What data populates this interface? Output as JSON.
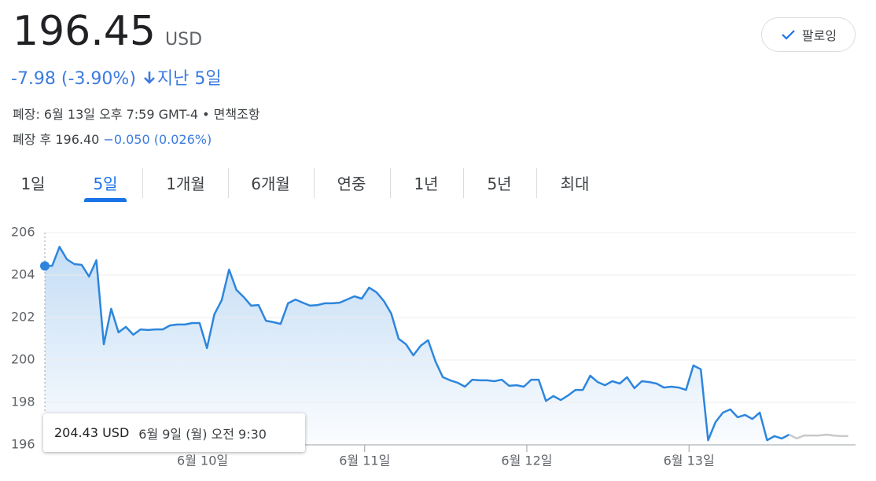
{
  "header": {
    "price": "196.45",
    "currency": "USD",
    "change": "-7.98 (-3.90%)",
    "period": "지난 5일",
    "status": "폐장: 6월 13일 오후 7:59 GMT-4 • 면책조항",
    "after_hours": "폐장 후 196.40",
    "after_hours_change": "−0.050 (0.026%)",
    "follow": "팔로잉"
  },
  "tabs": {
    "items": [
      "1일",
      "5일",
      "1개월",
      "6개월",
      "연중",
      "1년",
      "5년",
      "최대"
    ],
    "active": 1
  },
  "tooltip": {
    "price": "204.43 USD",
    "time": "6월 9일 (월) 오전 9:30"
  },
  "chart_data": {
    "type": "line",
    "x": [
      0,
      1,
      2,
      3,
      4,
      5,
      6,
      7,
      8,
      9,
      10,
      11,
      12,
      13,
      14,
      15,
      16,
      17,
      18,
      19,
      20,
      21,
      22,
      23,
      24,
      25,
      26,
      27,
      28,
      29,
      30,
      31,
      32,
      33,
      34,
      35,
      36,
      37,
      38,
      39,
      40,
      41,
      42,
      43,
      44,
      45,
      46,
      47,
      48,
      49,
      50,
      51,
      52,
      53,
      54,
      55,
      56,
      57,
      58,
      59,
      60,
      61,
      62,
      63,
      64,
      65,
      66,
      67,
      68,
      69,
      70,
      71,
      72,
      73,
      74,
      75,
      76,
      77,
      78,
      79,
      80,
      81,
      82,
      83,
      84,
      85,
      86,
      87,
      88,
      89,
      90,
      91,
      92,
      93,
      94,
      95,
      96,
      97,
      98,
      99,
      100,
      101,
      102,
      103,
      104,
      105,
      106,
      107,
      108,
      109
    ],
    "series": [
      {
        "color": "#2d86dd",
        "values": [
          204.43,
          204.44,
          205.33,
          204.74,
          204.52,
          204.48,
          203.93,
          204.7,
          200.74,
          202.41,
          201.3,
          201.56,
          201.19,
          201.44,
          201.41,
          201.44,
          201.44,
          201.63,
          201.67,
          201.67,
          201.74,
          201.74,
          200.56,
          202.15,
          202.81,
          204.26,
          203.3,
          202.96,
          202.56,
          202.59,
          201.85,
          201.78,
          201.7,
          202.67,
          202.85,
          202.7,
          202.56,
          202.59,
          202.67,
          202.67,
          202.7,
          202.85,
          203.0,
          202.89,
          203.41,
          203.19,
          202.78,
          202.19,
          201.0,
          200.74,
          200.22,
          200.67,
          200.93,
          199.93,
          199.19,
          199.04,
          198.93,
          198.74,
          199.07,
          199.04,
          199.04,
          199.0,
          199.07,
          198.78,
          198.81,
          198.74,
          199.07,
          199.07,
          198.07,
          198.3,
          198.11,
          198.33,
          198.59,
          198.59,
          199.26,
          198.96,
          198.81,
          199.0,
          198.89,
          199.19,
          198.67,
          199.0,
          198.96,
          198.89,
          198.7,
          198.74,
          198.7,
          198.59,
          199.74,
          199.56,
          196.22,
          197.07,
          197.52,
          197.67,
          197.3,
          197.41,
          197.22,
          197.52,
          196.22,
          196.41,
          196.3,
          196.48,
          null,
          null,
          null,
          null,
          null,
          null,
          null,
          null
        ]
      },
      {
        "color": "#c9c9c9",
        "values": [
          null,
          null,
          null,
          null,
          null,
          null,
          null,
          null,
          null,
          null,
          null,
          null,
          null,
          null,
          null,
          null,
          null,
          null,
          null,
          null,
          null,
          null,
          null,
          null,
          null,
          null,
          null,
          null,
          null,
          null,
          null,
          null,
          null,
          null,
          null,
          null,
          null,
          null,
          null,
          null,
          null,
          null,
          null,
          null,
          null,
          null,
          null,
          null,
          null,
          null,
          null,
          null,
          null,
          null,
          null,
          null,
          null,
          null,
          null,
          null,
          null,
          null,
          null,
          null,
          null,
          null,
          null,
          null,
          null,
          null,
          null,
          null,
          null,
          null,
          null,
          null,
          null,
          null,
          null,
          null,
          null,
          null,
          null,
          null,
          null,
          null,
          null,
          null,
          null,
          null,
          null,
          null,
          null,
          null,
          null,
          null,
          null,
          null,
          null,
          null,
          null,
          196.48,
          196.3,
          196.44,
          196.44,
          196.44,
          196.48,
          196.44,
          196.41,
          196.41
        ]
      }
    ],
    "xlim": [
      0,
      110
    ],
    "xticks": [
      {
        "value": 21.4,
        "label": "6월 10일"
      },
      {
        "value": 43.4,
        "label": "6월 11일"
      },
      {
        "value": 65.4,
        "label": "6월 12일"
      },
      {
        "value": 87.4,
        "label": "6월 13일"
      }
    ],
    "ylim": [
      196,
      206
    ],
    "yticks": [
      196,
      198,
      200,
      202,
      204,
      206
    ],
    "grid": true
  }
}
